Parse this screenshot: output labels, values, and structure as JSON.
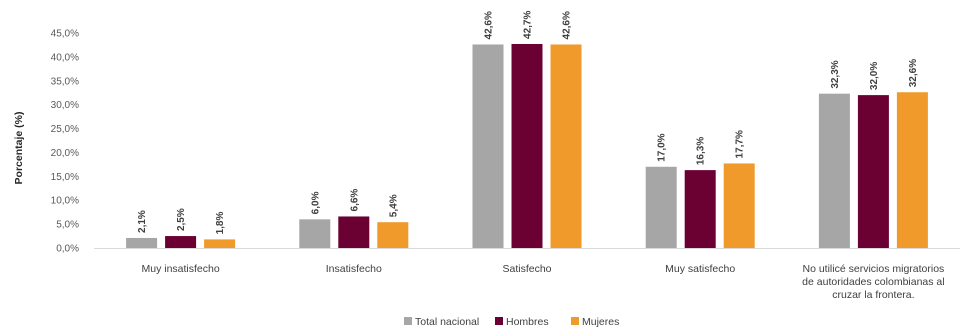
{
  "chart_data": {
    "type": "bar",
    "ylabel": "Porcentaje (%)",
    "ylim": [
      0,
      45
    ],
    "yticks": [
      "0,0%",
      "5,0%",
      "10,0%",
      "15,0%",
      "20,0%",
      "25,0%",
      "30,0%",
      "35,0%",
      "40,0%",
      "45,0%"
    ],
    "categories": [
      [
        "Muy insatisfecho"
      ],
      [
        "Insatisfecho"
      ],
      [
        "Satisfecho"
      ],
      [
        "Muy satisfecho"
      ],
      [
        "No utilicé servicios migratorios",
        "de autoridades colombianas al",
        "cruzar la frontera."
      ]
    ],
    "series": [
      {
        "name": "Total nacional",
        "color": "#a6a6a6",
        "values": [
          2.1,
          6.0,
          42.6,
          17.0,
          32.3
        ],
        "labels": [
          "2,1%",
          "6,0%",
          "42,6%",
          "17,0%",
          "32,3%"
        ]
      },
      {
        "name": "Hombres",
        "color": "#6b0033",
        "values": [
          2.5,
          6.6,
          42.7,
          16.3,
          32.0
        ],
        "labels": [
          "2,5%",
          "6,6%",
          "42,7%",
          "16,3%",
          "32,0%"
        ]
      },
      {
        "name": "Mujeres",
        "color": "#ef9a2b",
        "values": [
          1.8,
          5.4,
          42.6,
          17.7,
          32.6
        ],
        "labels": [
          "1,8%",
          "5,4%",
          "42,6%",
          "17,7%",
          "32,6%"
        ]
      }
    ],
    "legend": "bottom",
    "grid": false
  }
}
